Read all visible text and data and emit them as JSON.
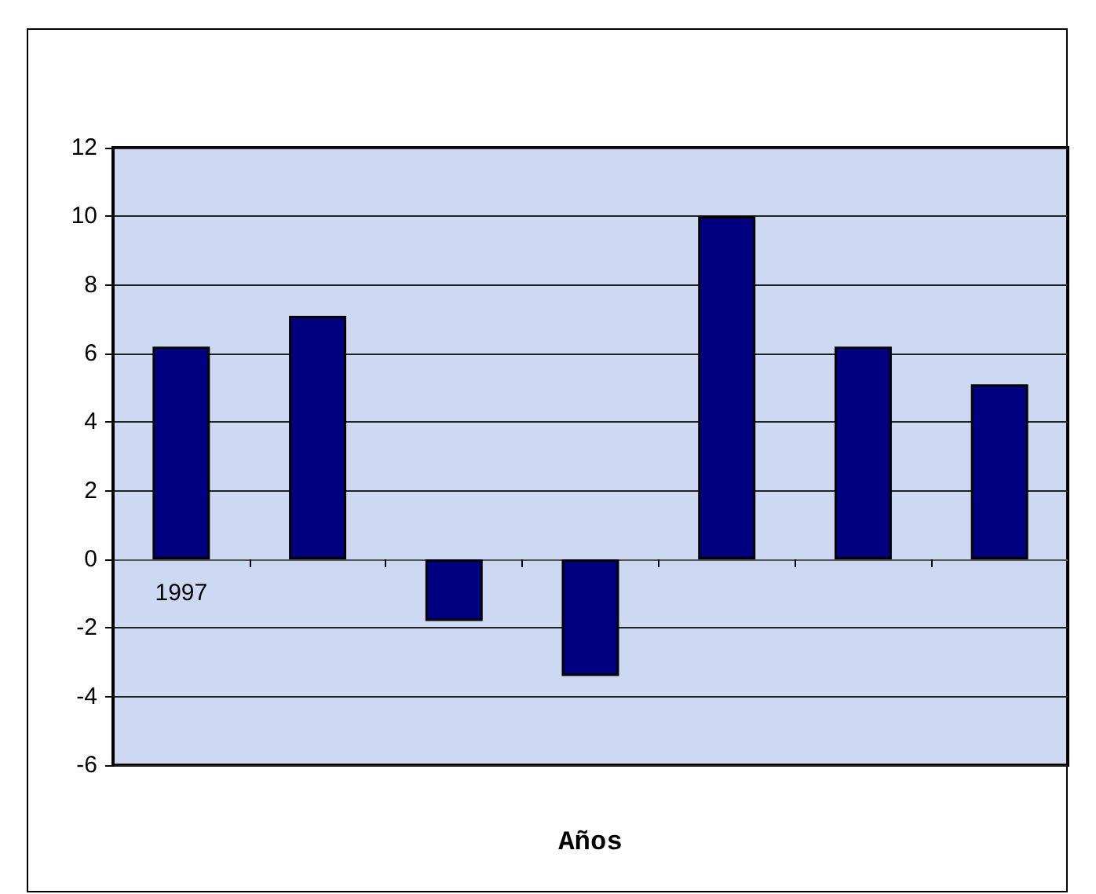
{
  "chart_data": {
    "type": "bar",
    "xlabel": "Años",
    "categories": [
      "1997",
      null,
      null,
      null,
      null,
      null,
      null
    ],
    "values": [
      6.2,
      7.1,
      -1.8,
      -3.4,
      10.0,
      6.2,
      5.1
    ],
    "color": "#000080",
    "ylim": [
      -6,
      12
    ],
    "yticks": [
      -6,
      -4,
      -2,
      0,
      2,
      4,
      6,
      8,
      10,
      12
    ],
    "grid": "y"
  }
}
